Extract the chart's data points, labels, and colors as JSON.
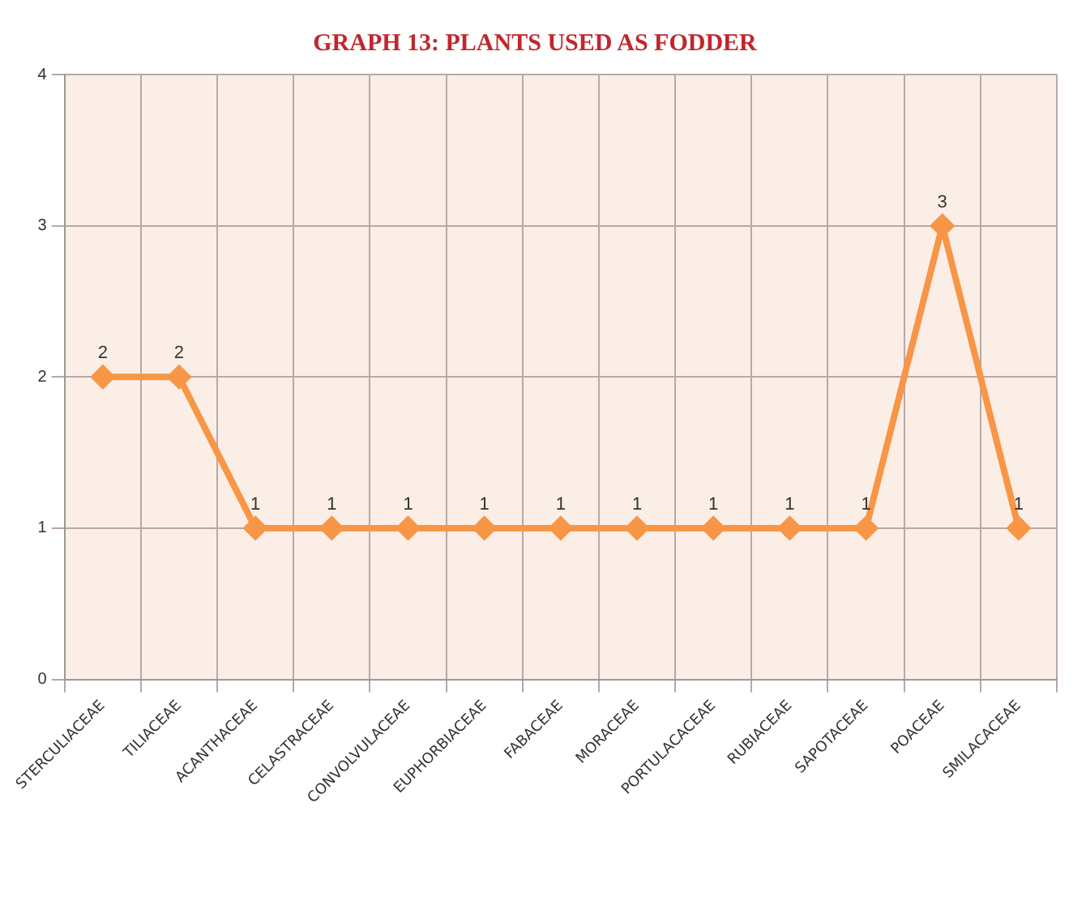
{
  "chart_data": {
    "type": "line",
    "title": "GRAPH 13: PLANTS USED AS FODDER",
    "categories": [
      "STERCULIACEAE",
      "TILIACEAE",
      "ACANTHACEAE",
      "CELASTRACEAE",
      "CONVOLVULACEAE",
      "EUPHORBIACEAE",
      "FABACEAE",
      "MORACEAE",
      "PORTULACACEAE",
      "RUBIACEAE",
      "SAPOTACEAE",
      "POACEAE",
      "SMILACACEAE"
    ],
    "series": [
      {
        "color": "#f79646",
        "values": [
          2,
          2,
          1,
          1,
          1,
          1,
          1,
          1,
          1,
          1,
          1,
          3,
          1
        ]
      }
    ],
    "ylim": [
      0,
      4
    ],
    "yticks": [
      0,
      1,
      2,
      3,
      4
    ],
    "grid": true,
    "legend": false,
    "marker": "diamond",
    "line_style": "solid",
    "data_labels": true
  }
}
